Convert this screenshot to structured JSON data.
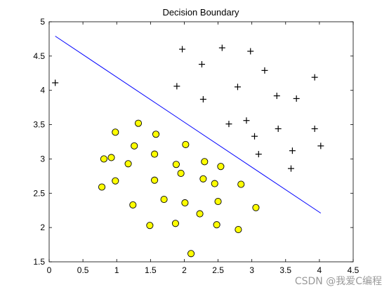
{
  "chart_data": {
    "type": "scatter",
    "title": "Decision Boundary",
    "xlabel": "",
    "ylabel": "",
    "xlim": [
      0,
      4.5
    ],
    "ylim": [
      1.5,
      5
    ],
    "x_ticks": [
      "0",
      "0.5",
      "1",
      "1.5",
      "2",
      "2.5",
      "3",
      "3.5",
      "4",
      "4.5"
    ],
    "y_ticks": [
      "1.5",
      "2",
      "2.5",
      "3",
      "3.5",
      "4",
      "4.5",
      "5"
    ],
    "grid": false,
    "legend": "none",
    "series": [
      {
        "marker": "plus",
        "color": "#000000",
        "points": [
          [
            0.09,
            4.11
          ],
          [
            1.97,
            4.6
          ],
          [
            2.26,
            4.38
          ],
          [
            2.56,
            4.62
          ],
          [
            2.98,
            4.57
          ],
          [
            3.19,
            4.29
          ],
          [
            3.93,
            4.19
          ],
          [
            1.89,
            4.06
          ],
          [
            2.79,
            4.05
          ],
          [
            2.28,
            3.87
          ],
          [
            3.37,
            3.92
          ],
          [
            3.66,
            3.88
          ],
          [
            2.66,
            3.51
          ],
          [
            2.92,
            3.56
          ],
          [
            3.04,
            3.33
          ],
          [
            3.39,
            3.44
          ],
          [
            3.93,
            3.44
          ],
          [
            3.1,
            3.07
          ],
          [
            3.6,
            3.12
          ],
          [
            4.02,
            3.19
          ],
          [
            3.58,
            2.86
          ]
        ]
      },
      {
        "marker": "circle",
        "color": "#ffff00",
        "points": [
          [
            0.98,
            3.39
          ],
          [
            1.32,
            3.52
          ],
          [
            1.58,
            3.36
          ],
          [
            0.81,
            3.0
          ],
          [
            0.92,
            3.02
          ],
          [
            1.26,
            3.19
          ],
          [
            1.56,
            3.07
          ],
          [
            2.02,
            3.21
          ],
          [
            1.17,
            2.93
          ],
          [
            1.88,
            2.92
          ],
          [
            2.3,
            2.96
          ],
          [
            2.54,
            2.89
          ],
          [
            0.78,
            2.59
          ],
          [
            0.98,
            2.68
          ],
          [
            1.95,
            2.79
          ],
          [
            1.56,
            2.69
          ],
          [
            2.28,
            2.71
          ],
          [
            2.45,
            2.64
          ],
          [
            2.84,
            2.63
          ],
          [
            1.24,
            2.33
          ],
          [
            1.7,
            2.41
          ],
          [
            2.01,
            2.36
          ],
          [
            2.5,
            2.38
          ],
          [
            3.06,
            2.29
          ],
          [
            2.23,
            2.2
          ],
          [
            1.49,
            2.03
          ],
          [
            1.87,
            2.06
          ],
          [
            2.48,
            2.04
          ],
          [
            2.8,
            1.97
          ],
          [
            2.1,
            1.62
          ]
        ]
      }
    ],
    "boundary": {
      "color": "#0000ff",
      "points": [
        [
          0.09,
          4.79
        ],
        [
          4.02,
          2.21
        ]
      ]
    }
  },
  "watermark": "CSDN @我爱C编程"
}
